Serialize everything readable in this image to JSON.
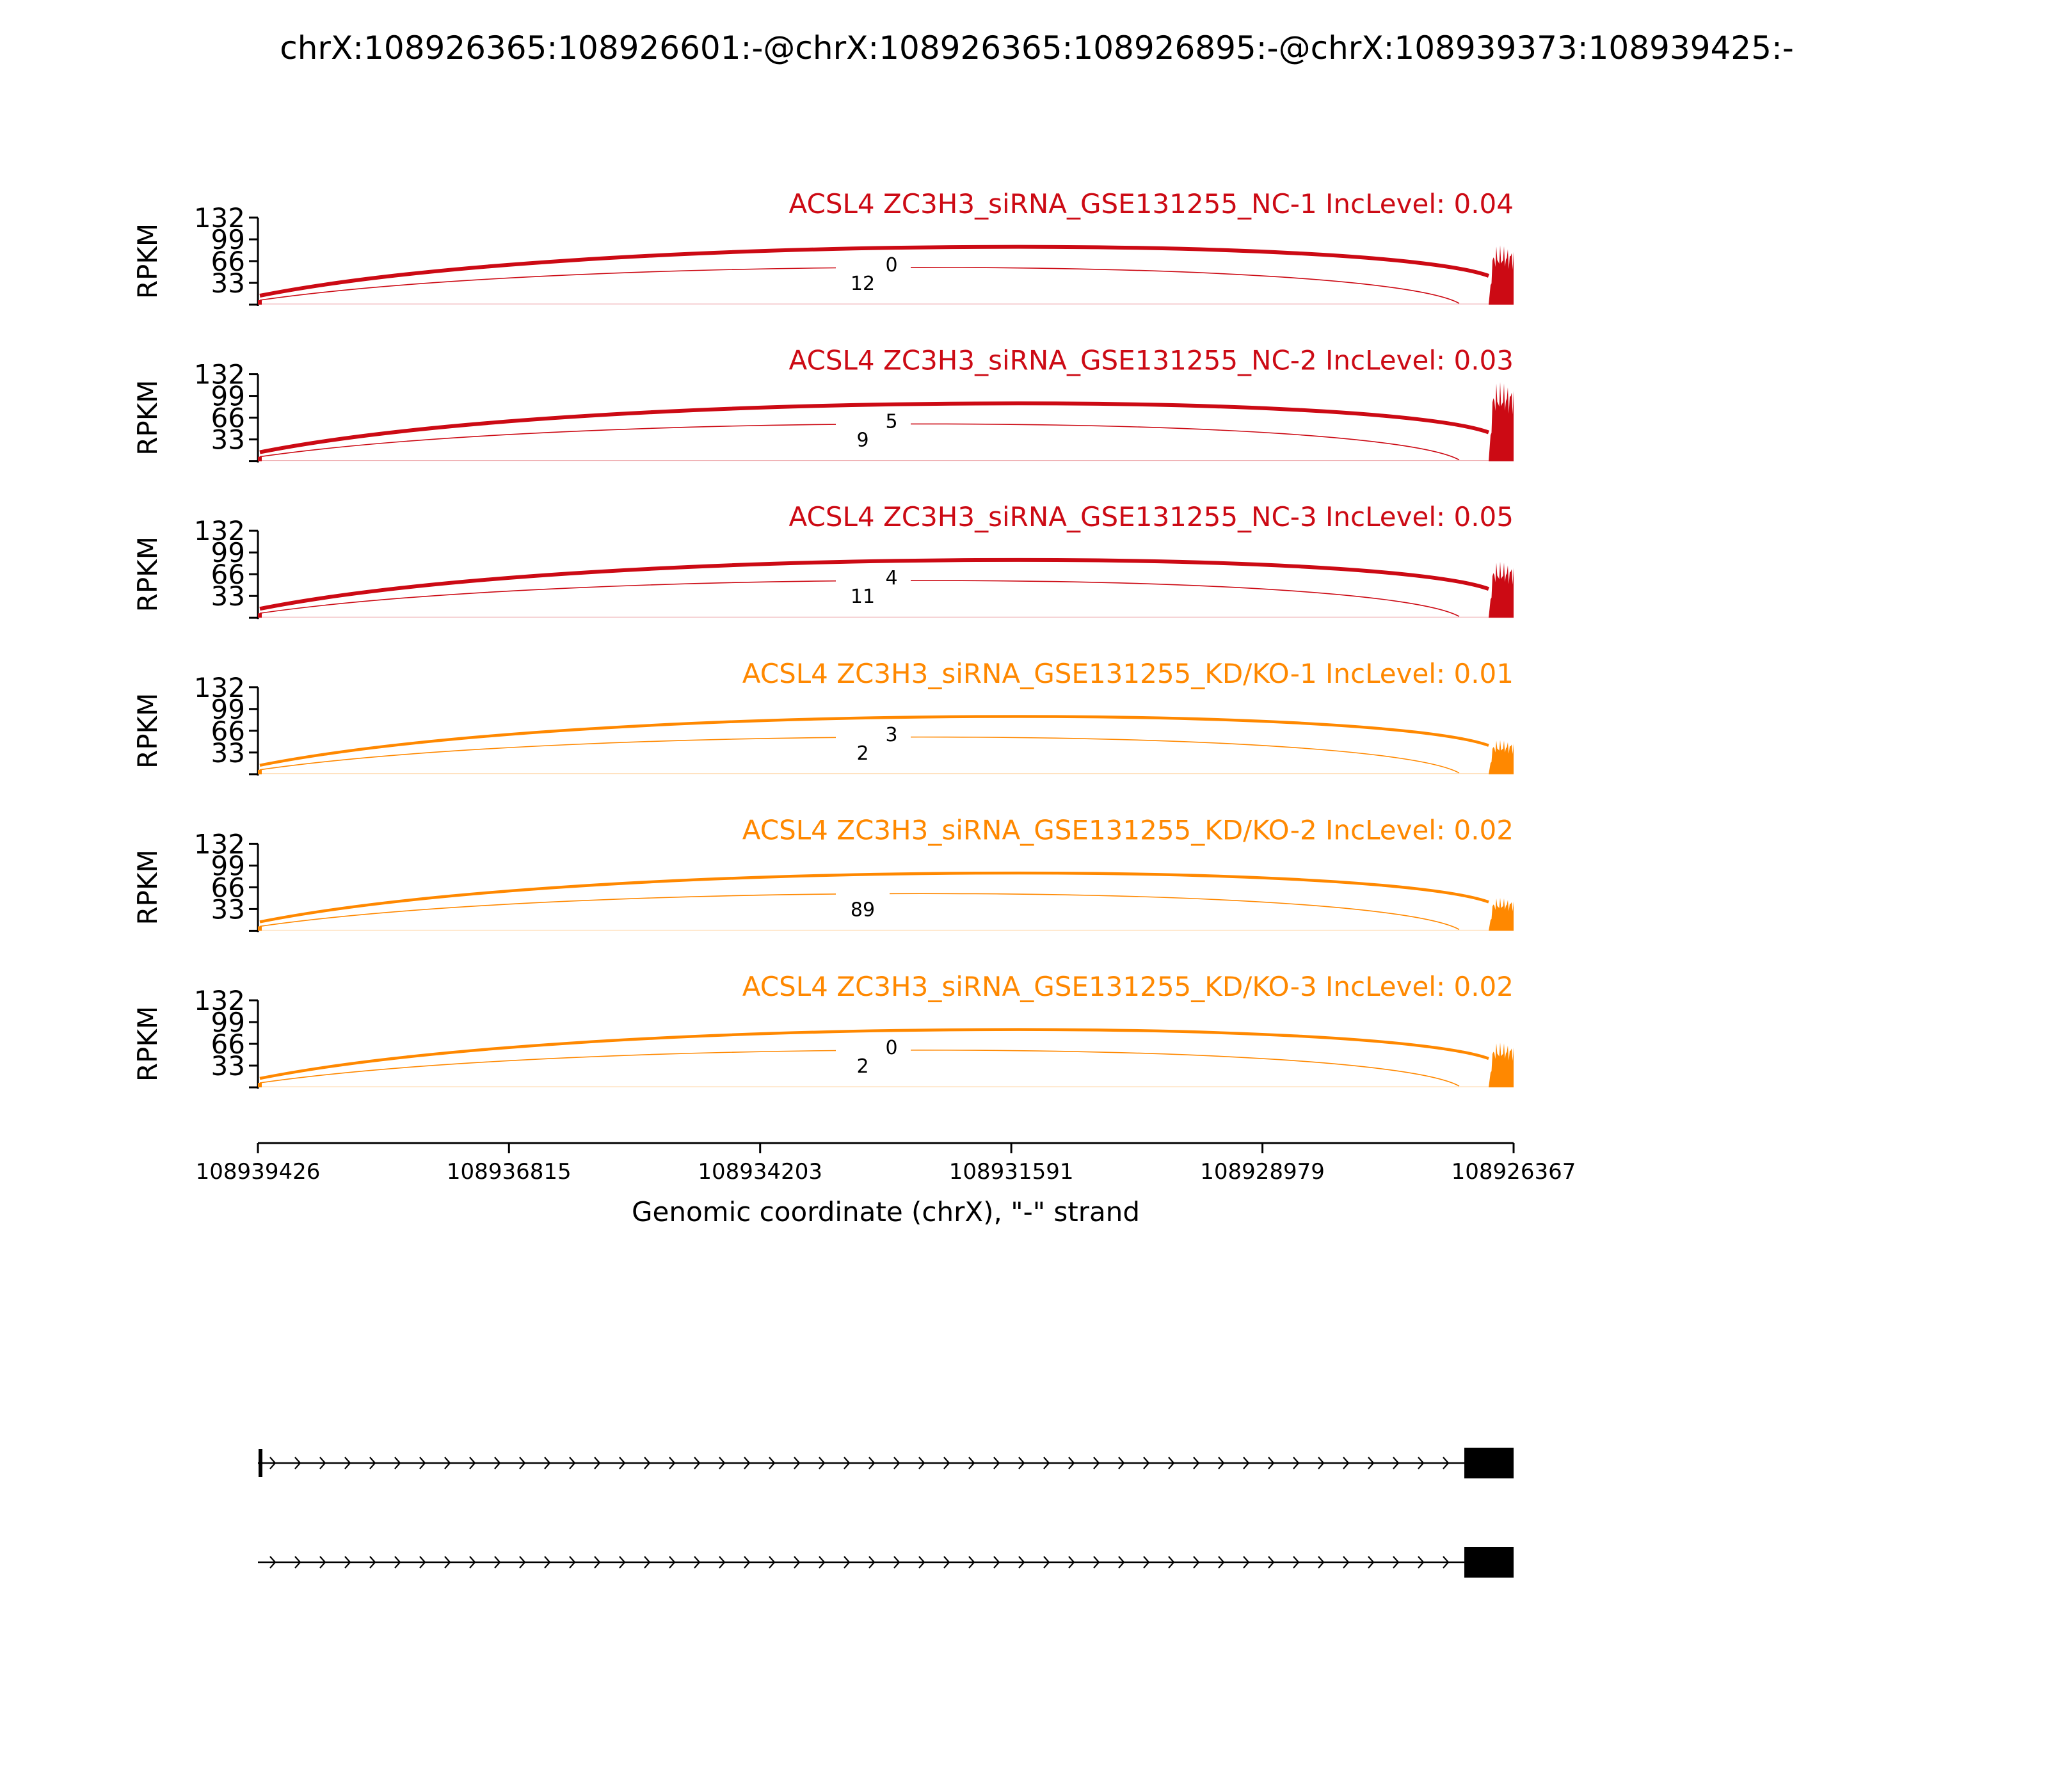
{
  "title": "chrX:108926365:108926601:-@chrX:108926365:108926895:-@chrX:108939373:108939425:-",
  "colors": {
    "nc": "#cc0a14",
    "kd": "#ff8800",
    "axis": "#000000"
  },
  "chart_data": {
    "type": "area",
    "ylabel": "RPKM",
    "ylim": [
      0,
      132
    ],
    "yticks": [
      "132",
      "99",
      "66",
      "33"
    ],
    "xlabel": "Genomic coordinate (chrX), \"-\" strand",
    "xticks": [
      "108939426",
      "108936815",
      "108934203",
      "108931591",
      "108928979",
      "108926367"
    ],
    "xlim": [
      108939426,
      108926367
    ],
    "series": [
      {
        "name": "ACSL4 ZC3H3_siRNA_GSE131255_NC-1 IncLevel: 0.04",
        "group": "nc",
        "peak": 90,
        "junction_labels": [
          "12",
          "0"
        ]
      },
      {
        "name": "ACSL4 ZC3H3_siRNA_GSE131255_NC-2 IncLevel: 0.03",
        "group": "nc",
        "peak": 120,
        "junction_labels": [
          "9",
          "5"
        ]
      },
      {
        "name": "ACSL4 ZC3H3_siRNA_GSE131255_NC-3 IncLevel: 0.05",
        "group": "nc",
        "peak": 85,
        "junction_labels": [
          "11",
          "4"
        ]
      },
      {
        "name": "ACSL4 ZC3H3_siRNA_GSE131255_KD/KO-1 IncLevel: 0.01",
        "group": "kd",
        "peak": 52,
        "junction_labels": [
          "2",
          "3"
        ]
      },
      {
        "name": "ACSL4 ZC3H3_siRNA_GSE131255_KD/KO-2 IncLevel: 0.02",
        "group": "kd",
        "peak": 50,
        "junction_labels": [
          "89",
          ""
        ]
      },
      {
        "name": "ACSL4 ZC3H3_siRNA_GSE131255_KD/KO-3 IncLevel: 0.02",
        "group": "kd",
        "peak": 68,
        "junction_labels": [
          "2",
          "0"
        ]
      }
    ],
    "transcripts": [
      {
        "start_exon": true
      },
      {
        "start_exon": false
      }
    ]
  }
}
